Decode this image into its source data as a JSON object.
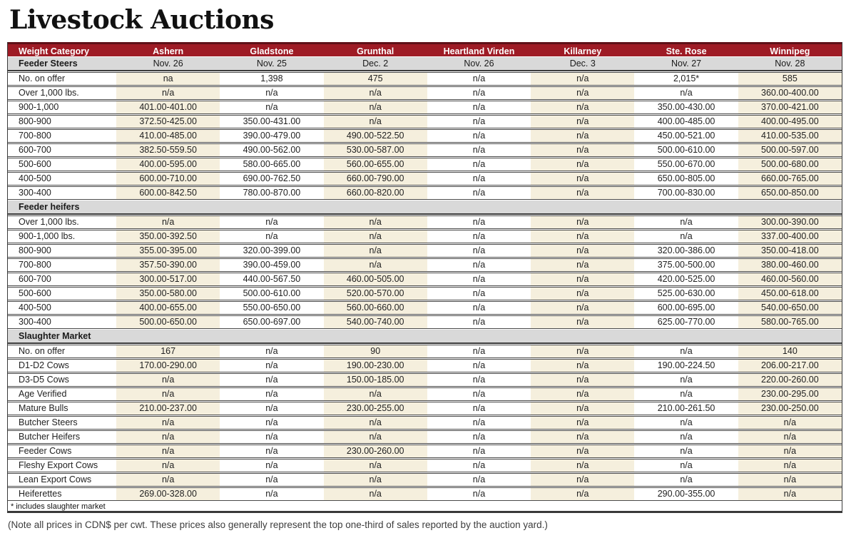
{
  "page": {
    "title": "Livestock Auctions",
    "footnote": "* includes slaughter market",
    "note": "(Note all prices in CDN$ per cwt. These prices also generally represent the top one-third of sales reported by the auction yard.)"
  },
  "colors": {
    "header_bg": "#9e1b25",
    "header_top_line": "#5f1118",
    "header_text": "#ffffff",
    "section_bg": "#d9d9d9",
    "alt_column_bg": "#f5efdd",
    "row_line": "#4a4a4a"
  },
  "table": {
    "columns": [
      "Weight Category",
      "Ashern",
      "Gladstone",
      "Grunthal",
      "Heartland Virden",
      "Killarney",
      "Ste. Rose",
      "Winnipeg"
    ],
    "sections": [
      {
        "label": "Feeder Steers",
        "dates": [
          "Nov. 26",
          "Nov. 25",
          "Dec. 2",
          "Nov. 26",
          "Dec. 3",
          "Nov. 27",
          "Nov. 28"
        ],
        "rows": [
          {
            "label": "No. on offer",
            "values": [
              "na",
              "1,398",
              "475",
              "n/a",
              "n/a",
              "2,015*",
              "585"
            ]
          },
          {
            "label": "Over 1,000 lbs.",
            "values": [
              "n/a",
              "n/a",
              "n/a",
              "n/a",
              "n/a",
              "n/a",
              "360.00-400.00"
            ]
          },
          {
            "label": "900-1,000",
            "values": [
              "401.00-401.00",
              "n/a",
              "n/a",
              "n/a",
              "n/a",
              "350.00-430.00",
              "370.00-421.00"
            ]
          },
          {
            "label": "800-900",
            "values": [
              "372.50-425.00",
              "350.00-431.00",
              "n/a",
              "n/a",
              "n/a",
              "400.00-485.00",
              "400.00-495.00"
            ]
          },
          {
            "label": "700-800",
            "values": [
              "410.00-485.00",
              "390.00-479.00",
              "490.00-522.50",
              "n/a",
              "n/a",
              "450.00-521.00",
              "410.00-535.00"
            ]
          },
          {
            "label": "600-700",
            "values": [
              "382.50-559.50",
              "490.00-562.00",
              "530.00-587.00",
              "n/a",
              "n/a",
              "500.00-610.00",
              "500.00-597.00"
            ]
          },
          {
            "label": "500-600",
            "values": [
              "400.00-595.00",
              "580.00-665.00",
              "560.00-655.00",
              "n/a",
              "n/a",
              "550.00-670.00",
              "500.00-680.00"
            ]
          },
          {
            "label": "400-500",
            "values": [
              "600.00-710.00",
              "690.00-762.50",
              "660.00-790.00",
              "n/a",
              "n/a",
              "650.00-805.00",
              "660.00-765.00"
            ]
          },
          {
            "label": "300-400",
            "values": [
              "600.00-842.50",
              "780.00-870.00",
              "660.00-820.00",
              "n/a",
              "n/a",
              "700.00-830.00",
              "650.00-850.00"
            ]
          }
        ]
      },
      {
        "label": "Feeder heifers",
        "dates": null,
        "rows": [
          {
            "label": "Over 1,000 lbs.",
            "values": [
              "n/a",
              "n/a",
              "n/a",
              "n/a",
              "n/a",
              "n/a",
              "300.00-390.00"
            ]
          },
          {
            "label": "900-1,000 lbs.",
            "values": [
              "350.00-392.50",
              "n/a",
              "n/a",
              "n/a",
              "n/a",
              "n/a",
              "337.00-400.00"
            ]
          },
          {
            "label": "800-900",
            "values": [
              "355.00-395.00",
              "320.00-399.00",
              "n/a",
              "n/a",
              "n/a",
              "320.00-386.00",
              "350.00-418.00"
            ]
          },
          {
            "label": "700-800",
            "values": [
              "357.50-390.00",
              "390.00-459.00",
              "n/a",
              "n/a",
              "n/a",
              "375.00-500.00",
              "380.00-460.00"
            ]
          },
          {
            "label": "600-700",
            "values": [
              "300.00-517.00",
              "440.00-567.50",
              "460.00-505.00",
              "n/a",
              "n/a",
              "420.00-525.00",
              "460.00-560.00"
            ]
          },
          {
            "label": "500-600",
            "values": [
              "350.00-580.00",
              "500.00-610.00",
              "520.00-570.00",
              "n/a",
              "n/a",
              "525.00-630.00",
              "450.00-618.00"
            ]
          },
          {
            "label": "400-500",
            "values": [
              "400.00-655.00",
              "550.00-650.00",
              "560.00-660.00",
              "n/a",
              "n/a",
              "600.00-695.00",
              "540.00-650.00"
            ]
          },
          {
            "label": "300-400",
            "values": [
              "500.00-650.00",
              "650.00-697.00",
              "540.00-740.00",
              "n/a",
              "n/a",
              "625.00-770.00",
              "580.00-765.00"
            ]
          }
        ]
      },
      {
        "label": "Slaughter Market",
        "dates": null,
        "rows": [
          {
            "label": "No. on offer",
            "values": [
              "167",
              "n/a",
              "90",
              "n/a",
              "n/a",
              "n/a",
              "140"
            ]
          },
          {
            "label": "D1-D2 Cows",
            "values": [
              "170.00-290.00",
              "n/a",
              "190.00-230.00",
              "n/a",
              "n/a",
              "190.00-224.50",
              "206.00-217.00"
            ]
          },
          {
            "label": "D3-D5 Cows",
            "values": [
              "n/a",
              "n/a",
              "150.00-185.00",
              "n/a",
              "n/a",
              "n/a",
              "220.00-260.00"
            ]
          },
          {
            "label": "Age Verified",
            "values": [
              "n/a",
              "n/a",
              "n/a",
              "n/a",
              "n/a",
              "n/a",
              "230.00-295.00"
            ]
          },
          {
            "label": "Mature Bulls",
            "values": [
              "210.00-237.00",
              "n/a",
              "230.00-255.00",
              "n/a",
              "n/a",
              "210.00-261.50",
              "230.00-250.00"
            ]
          },
          {
            "label": "Butcher Steers",
            "values": [
              "n/a",
              "n/a",
              "n/a",
              "n/a",
              "n/a",
              "n/a",
              "n/a"
            ]
          },
          {
            "label": "Butcher Heifers",
            "values": [
              "n/a",
              "n/a",
              "n/a",
              "n/a",
              "n/a",
              "n/a",
              "n/a"
            ]
          },
          {
            "label": "Feeder Cows",
            "values": [
              "n/a",
              "n/a",
              "230.00-260.00",
              "n/a",
              "n/a",
              "n/a",
              "n/a"
            ]
          },
          {
            "label": "Fleshy Export Cows",
            "values": [
              "n/a",
              "n/a",
              "n/a",
              "n/a",
              "n/a",
              "n/a",
              "n/a"
            ]
          },
          {
            "label": "Lean Export Cows",
            "values": [
              "n/a",
              "n/a",
              "n/a",
              "n/a",
              "n/a",
              "n/a",
              "n/a"
            ]
          },
          {
            "label": "Heiferettes",
            "values": [
              "269.00-328.00",
              "n/a",
              "n/a",
              "n/a",
              "n/a",
              "290.00-355.00",
              "n/a"
            ]
          }
        ]
      }
    ]
  }
}
